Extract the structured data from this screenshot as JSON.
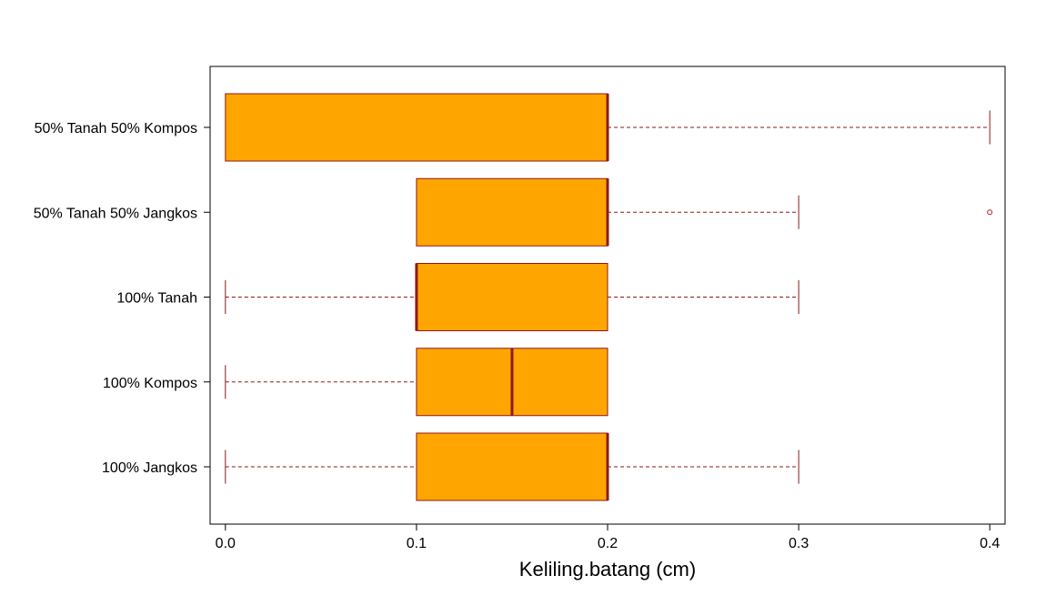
{
  "chart_data": {
    "type": "boxplot",
    "orientation": "horizontal",
    "title": "",
    "xlabel": "Keliling.batang (cm)",
    "ylabel": "",
    "xlim": [
      -0.008,
      0.408
    ],
    "xticks": [
      0.0,
      0.1,
      0.2,
      0.3,
      0.4
    ],
    "xtick_labels": [
      "0.0",
      "0.1",
      "0.2",
      "0.3",
      "0.4"
    ],
    "grid": false,
    "colors": {
      "box_fill": "#FFA500",
      "box_border": "#8B1A1A",
      "median": "#8B1A1A",
      "whisker": "#8B1A1A",
      "outlier": "#B22222",
      "frame": "#000000"
    },
    "categories": [
      "100% Jangkos",
      "100% Kompos",
      "100% Tanah",
      "50% Tanah 50% Jangkos",
      "50% Tanah 50% Kompos"
    ],
    "boxes": [
      {
        "label": "100% Jangkos",
        "min": 0.0,
        "q1": 0.1,
        "median": 0.2,
        "q3": 0.2,
        "max": 0.3,
        "outliers": []
      },
      {
        "label": "100% Kompos",
        "min": 0.0,
        "q1": 0.1,
        "median": 0.15,
        "q3": 0.2,
        "max": 0.2,
        "outliers": []
      },
      {
        "label": "100% Tanah",
        "min": 0.0,
        "q1": 0.1,
        "median": 0.1,
        "q3": 0.2,
        "max": 0.3,
        "outliers": []
      },
      {
        "label": "50% Tanah 50% Jangkos",
        "min": 0.1,
        "q1": 0.1,
        "median": 0.2,
        "q3": 0.2,
        "max": 0.3,
        "outliers": [
          0.4
        ]
      },
      {
        "label": "50% Tanah 50% Kompos",
        "min": 0.0,
        "q1": 0.0,
        "median": 0.2,
        "q3": 0.2,
        "max": 0.4,
        "outliers": []
      }
    ]
  }
}
